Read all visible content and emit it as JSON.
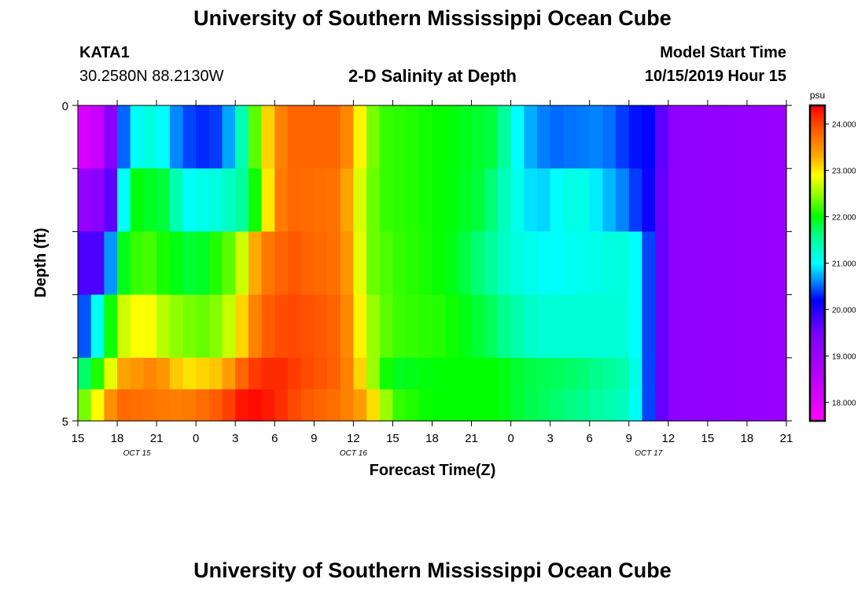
{
  "header": {
    "title": "University of Southern Mississippi Ocean Cube",
    "station_id": "KATA1",
    "station_coords": "30.2580N 88.2130W",
    "chart_title": "2-D Salinity at Depth",
    "model_start_label": "Model Start Time",
    "model_start_value": "10/15/2019 Hour 15"
  },
  "footer": {
    "title": "University of Southern Mississippi Ocean Cube"
  },
  "chart_data": {
    "type": "heatmap",
    "title": "2-D Salinity at Depth",
    "xlabel": "Forecast Time(Z)",
    "ylabel": "Depth (ft)",
    "x_tick_labels": [
      "15",
      "18",
      "21",
      "0",
      "3",
      "6",
      "9",
      "12",
      "15",
      "18",
      "21",
      "0",
      "3",
      "6",
      "9",
      "12",
      "15",
      "18",
      "21"
    ],
    "x_hours": [
      0,
      3,
      6,
      9,
      12,
      15,
      18,
      21,
      24,
      27,
      30,
      33,
      36,
      39,
      42,
      45,
      48,
      51,
      54
    ],
    "date_labels": [
      {
        "text": "OCT 15",
        "at_hour": 4.5
      },
      {
        "text": "OCT 16",
        "at_hour": 21
      },
      {
        "text": "OCT 17",
        "at_hour": 43.5
      }
    ],
    "y_tick_labels": [
      "0",
      "5"
    ],
    "ylim": [
      0,
      5
    ],
    "xlim_hours": [
      0,
      54
    ],
    "colorbar": {
      "unit": "psu",
      "tick_labels": [
        "18.000",
        "19.000",
        "20.000",
        "21.000",
        "22.000",
        "23.000",
        "24.000"
      ],
      "ticks": [
        18,
        19,
        20,
        21,
        22,
        23,
        24
      ],
      "range": [
        17.6,
        24.4
      ],
      "stops": [
        {
          "v": 17.6,
          "color": "#ff00ff"
        },
        {
          "v": 18.3,
          "color": "#cc00ff"
        },
        {
          "v": 19.5,
          "color": "#7700ff"
        },
        {
          "v": 20.2,
          "color": "#0000ff"
        },
        {
          "v": 20.6,
          "color": "#0088ff"
        },
        {
          "v": 21.0,
          "color": "#00ffff"
        },
        {
          "v": 21.6,
          "color": "#00ff88"
        },
        {
          "v": 22.0,
          "color": "#00ff00"
        },
        {
          "v": 22.5,
          "color": "#99ff00"
        },
        {
          "v": 22.9,
          "color": "#ffff00"
        },
        {
          "v": 23.3,
          "color": "#ffaa00"
        },
        {
          "v": 23.8,
          "color": "#ff6600"
        },
        {
          "v": 24.4,
          "color": "#ff0000"
        }
      ]
    },
    "depth_layers": 5,
    "time_steps_hours": 1,
    "series": [
      {
        "name": "depth_0_to_1_ft",
        "keyframes": [
          [
            0,
            18.0
          ],
          [
            2,
            18.5
          ],
          [
            3,
            20.0
          ],
          [
            4,
            21.0
          ],
          [
            6,
            21.2
          ],
          [
            7.5,
            20.6
          ],
          [
            9,
            20.3
          ],
          [
            11,
            20.4
          ],
          [
            12,
            21.0
          ],
          [
            13,
            21.8
          ],
          [
            14,
            22.8
          ],
          [
            15,
            23.4
          ],
          [
            16,
            23.8
          ],
          [
            20,
            23.8
          ],
          [
            21,
            23.3
          ],
          [
            22,
            22.6
          ],
          [
            23,
            22.2
          ],
          [
            28,
            22.0
          ],
          [
            32,
            21.8
          ],
          [
            33,
            21.2
          ],
          [
            34,
            20.8
          ],
          [
            36,
            20.5
          ],
          [
            40,
            20.6
          ],
          [
            42,
            20.3
          ],
          [
            44,
            20.1
          ],
          [
            45,
            19.2
          ],
          [
            54,
            19.0
          ]
        ]
      },
      {
        "name": "depth_1_to_2_ft",
        "keyframes": [
          [
            0,
            19.0
          ],
          [
            2,
            19.3
          ],
          [
            3,
            20.0
          ],
          [
            4,
            22.0
          ],
          [
            7,
            21.8
          ],
          [
            8,
            21.0
          ],
          [
            11,
            21.2
          ],
          [
            13,
            21.6
          ],
          [
            14,
            22.5
          ],
          [
            15,
            23.5
          ],
          [
            16,
            23.8
          ],
          [
            20,
            23.7
          ],
          [
            21,
            23.0
          ],
          [
            22,
            22.5
          ],
          [
            23,
            22.2
          ],
          [
            28,
            22.0
          ],
          [
            31,
            21.8
          ],
          [
            33,
            21.2
          ],
          [
            35,
            20.8
          ],
          [
            38,
            21.2
          ],
          [
            42,
            20.5
          ],
          [
            44,
            20.0
          ],
          [
            45,
            19.2
          ],
          [
            54,
            19.0
          ]
        ]
      },
      {
        "name": "depth_2_to_3_ft",
        "keyframes": [
          [
            0,
            19.5
          ],
          [
            1,
            20.0
          ],
          [
            2,
            19.5
          ],
          [
            3,
            21.8
          ],
          [
            5,
            22.3
          ],
          [
            7,
            22.0
          ],
          [
            9,
            21.8
          ],
          [
            12,
            22.4
          ],
          [
            13,
            23.0
          ],
          [
            14,
            23.6
          ],
          [
            16,
            23.9
          ],
          [
            20,
            23.7
          ],
          [
            21,
            23.2
          ],
          [
            22,
            22.4
          ],
          [
            24,
            22.2
          ],
          [
            28,
            22.0
          ],
          [
            31,
            21.6
          ],
          [
            33,
            21.2
          ],
          [
            36,
            21.0
          ],
          [
            42,
            21.2
          ],
          [
            43,
            20.8
          ],
          [
            44,
            20.0
          ],
          [
            45,
            19.2
          ],
          [
            54,
            19.0
          ]
        ]
      },
      {
        "name": "depth_3_to_4_ft",
        "keyframes": [
          [
            0,
            20.3
          ],
          [
            1,
            20.6
          ],
          [
            2,
            21.5
          ],
          [
            3,
            22.6
          ],
          [
            5,
            23.0
          ],
          [
            7,
            22.5
          ],
          [
            10,
            22.3
          ],
          [
            12,
            22.8
          ],
          [
            13,
            23.4
          ],
          [
            14,
            23.8
          ],
          [
            16,
            24.0
          ],
          [
            20,
            23.8
          ],
          [
            21,
            23.3
          ],
          [
            22,
            22.6
          ],
          [
            24,
            22.2
          ],
          [
            28,
            22.1
          ],
          [
            31,
            21.8
          ],
          [
            33,
            21.5
          ],
          [
            35,
            21.2
          ],
          [
            42,
            21.2
          ],
          [
            43,
            20.8
          ],
          [
            44,
            20.0
          ],
          [
            45,
            19.2
          ],
          [
            54,
            19.0
          ]
        ]
      },
      {
        "name": "depth_4_to_5_ft",
        "keyframes": [
          [
            0,
            21.5
          ],
          [
            2,
            22.3
          ],
          [
            3,
            23.3
          ],
          [
            6,
            23.6
          ],
          [
            8,
            23.0
          ],
          [
            11,
            23.2
          ],
          [
            12,
            23.6
          ],
          [
            13,
            24.0
          ],
          [
            15,
            24.2
          ],
          [
            17,
            24.0
          ],
          [
            20,
            23.8
          ],
          [
            21,
            23.4
          ],
          [
            22,
            22.8
          ],
          [
            23,
            22.2
          ],
          [
            24,
            21.9
          ],
          [
            28,
            22.0
          ],
          [
            32,
            22.0
          ],
          [
            34,
            21.8
          ],
          [
            38,
            21.7
          ],
          [
            42,
            21.4
          ],
          [
            43,
            20.8
          ],
          [
            44,
            20.0
          ],
          [
            45,
            19.2
          ],
          [
            54,
            19.0
          ]
        ]
      },
      {
        "name": "depth_5_ft",
        "keyframes": [
          [
            0,
            22.2
          ],
          [
            1,
            22.6
          ],
          [
            2,
            23.2
          ],
          [
            3,
            23.8
          ],
          [
            8,
            23.6
          ],
          [
            11,
            23.9
          ],
          [
            13,
            24.4
          ],
          [
            15,
            24.2
          ],
          [
            17,
            23.9
          ],
          [
            20,
            23.7
          ],
          [
            22,
            23.3
          ],
          [
            23,
            22.8
          ],
          [
            24,
            22.2
          ],
          [
            27,
            22.0
          ],
          [
            32,
            22.0
          ],
          [
            34,
            21.8
          ],
          [
            38,
            21.6
          ],
          [
            42,
            21.3
          ],
          [
            43,
            20.8
          ],
          [
            44,
            20.0
          ],
          [
            45,
            19.2
          ],
          [
            54,
            19.0
          ]
        ]
      }
    ]
  }
}
